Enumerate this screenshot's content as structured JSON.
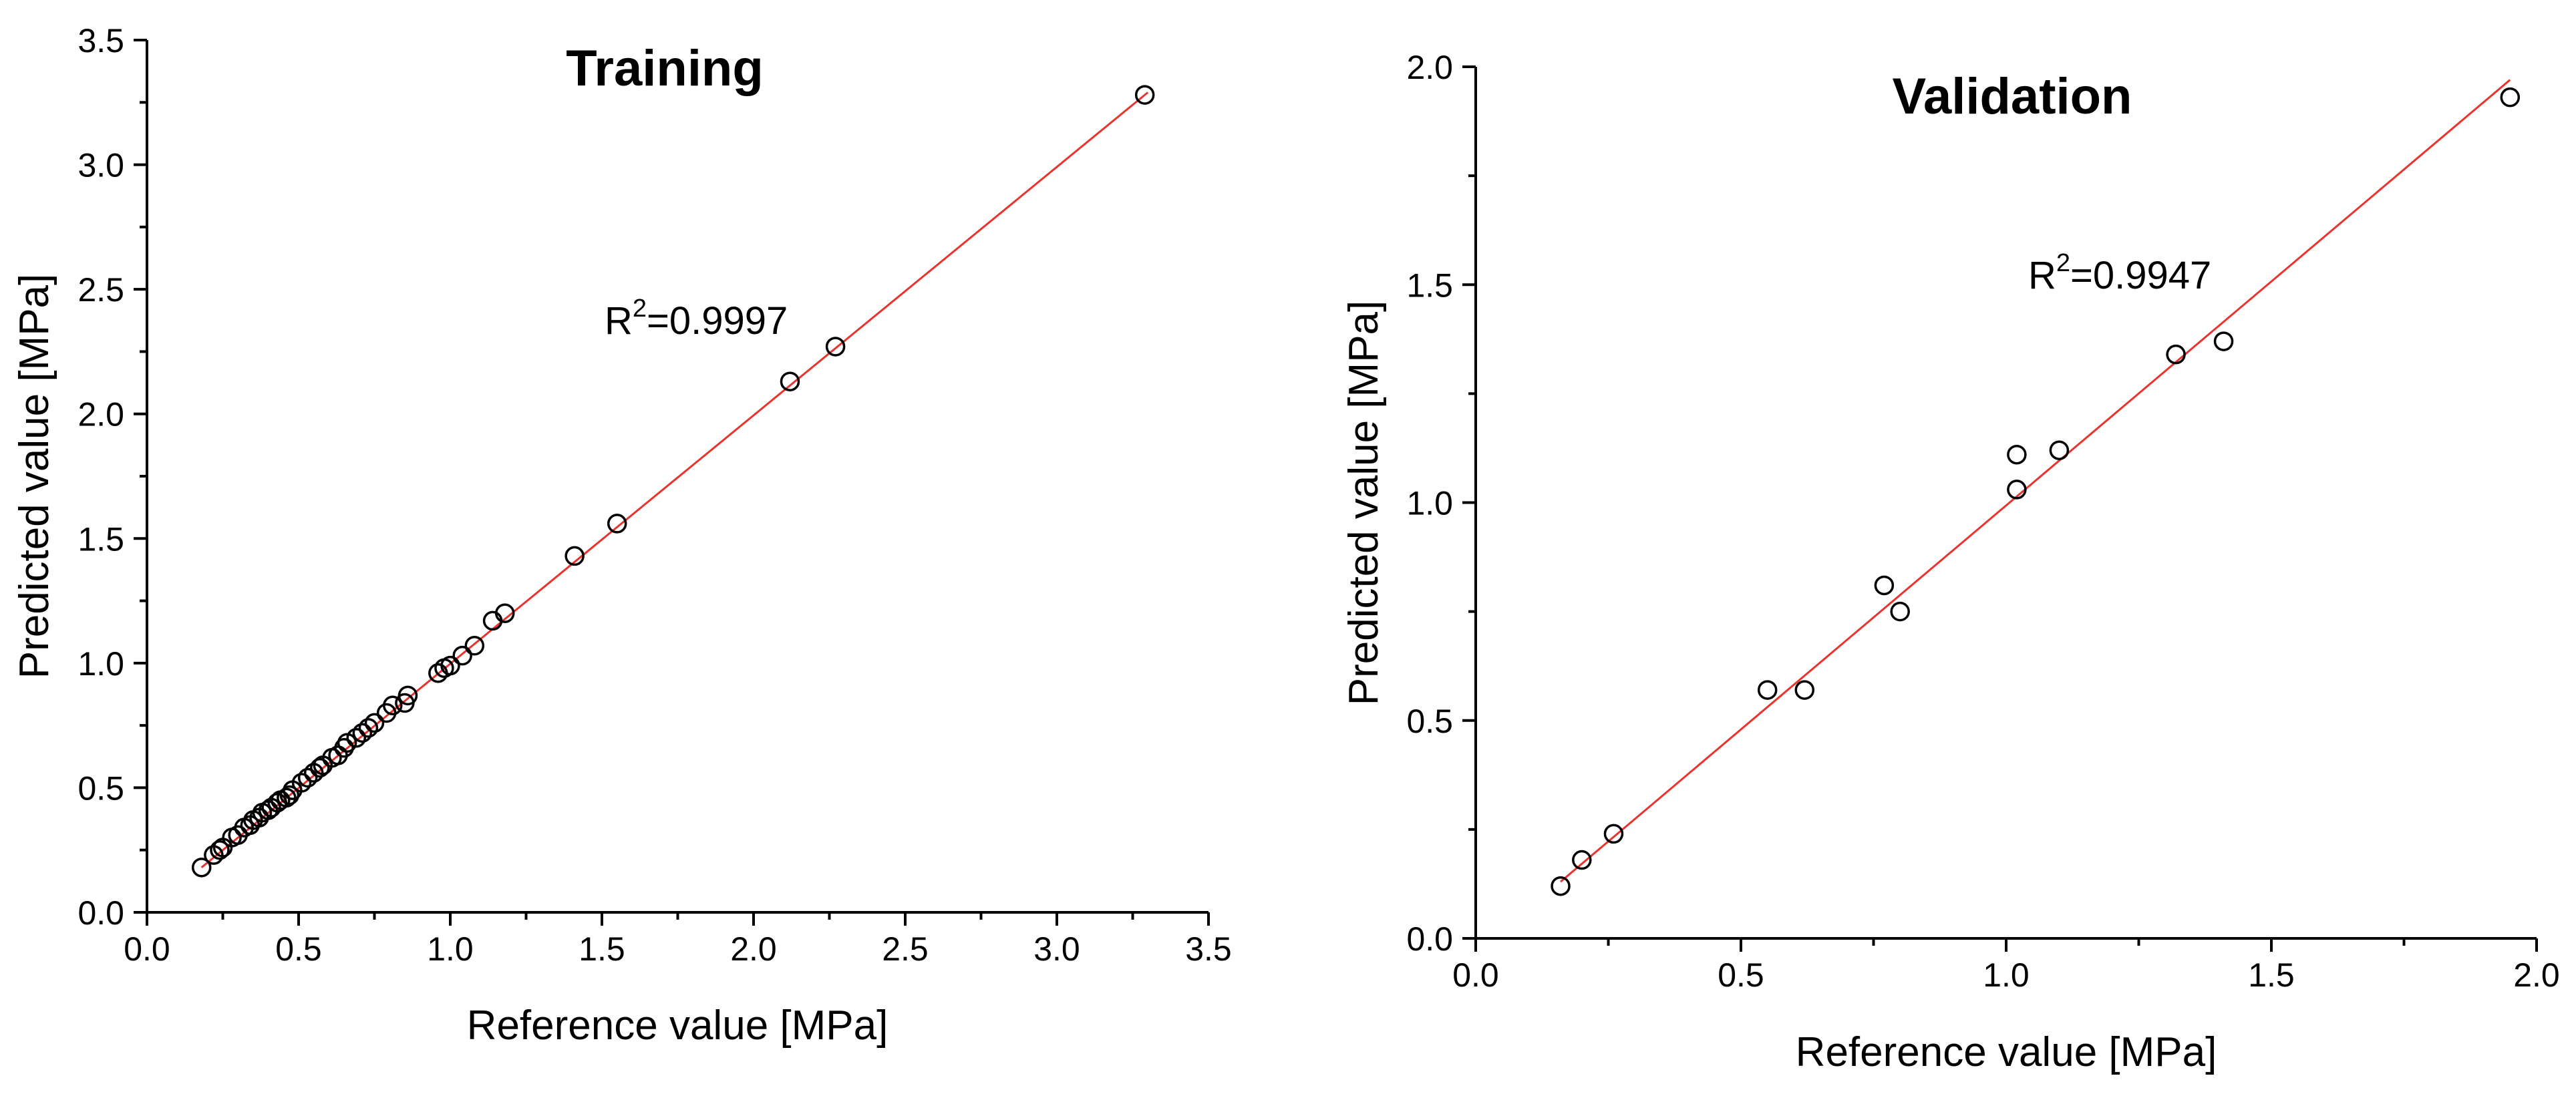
{
  "chart_data": [
    {
      "type": "scatter",
      "title": "Training",
      "xlabel": "Reference value [MPa]",
      "ylabel": "Predicted value [MPa]",
      "xlim": [
        0.0,
        3.5
      ],
      "ylim": [
        0.0,
        3.5
      ],
      "xticks": [
        "0.0",
        "0.5",
        "1.0",
        "1.5",
        "2.0",
        "2.5",
        "3.0",
        "3.5"
      ],
      "yticks": [
        "0.0",
        "0.5",
        "1.0",
        "1.5",
        "2.0",
        "2.5",
        "3.0",
        "3.5"
      ],
      "annotation": {
        "prefix": "R",
        "sup": "2",
        "suffix": "=0.9997"
      },
      "fit_line": {
        "x": [
          0.18,
          3.3
        ],
        "y": [
          0.18,
          3.29
        ],
        "color": "#e8332e"
      },
      "grid": false,
      "points": [
        [
          0.18,
          0.18
        ],
        [
          0.22,
          0.23
        ],
        [
          0.24,
          0.25
        ],
        [
          0.25,
          0.26
        ],
        [
          0.28,
          0.3
        ],
        [
          0.3,
          0.31
        ],
        [
          0.32,
          0.34
        ],
        [
          0.34,
          0.35
        ],
        [
          0.35,
          0.37
        ],
        [
          0.37,
          0.38
        ],
        [
          0.38,
          0.4
        ],
        [
          0.4,
          0.41
        ],
        [
          0.41,
          0.42
        ],
        [
          0.43,
          0.44
        ],
        [
          0.44,
          0.45
        ],
        [
          0.46,
          0.46
        ],
        [
          0.47,
          0.47
        ],
        [
          0.48,
          0.49
        ],
        [
          0.51,
          0.52
        ],
        [
          0.53,
          0.54
        ],
        [
          0.55,
          0.56
        ],
        [
          0.57,
          0.58
        ],
        [
          0.58,
          0.59
        ],
        [
          0.61,
          0.62
        ],
        [
          0.63,
          0.63
        ],
        [
          0.65,
          0.66
        ],
        [
          0.66,
          0.68
        ],
        [
          0.69,
          0.7
        ],
        [
          0.71,
          0.72
        ],
        [
          0.73,
          0.74
        ],
        [
          0.75,
          0.76
        ],
        [
          0.79,
          0.8
        ],
        [
          0.81,
          0.83
        ],
        [
          0.85,
          0.84
        ],
        [
          0.86,
          0.87
        ],
        [
          0.96,
          0.96
        ],
        [
          0.98,
          0.98
        ],
        [
          1.0,
          0.99
        ],
        [
          1.04,
          1.03
        ],
        [
          1.08,
          1.07
        ],
        [
          1.14,
          1.17
        ],
        [
          1.18,
          1.2
        ],
        [
          1.41,
          1.43
        ],
        [
          1.55,
          1.56
        ],
        [
          2.12,
          2.13
        ],
        [
          2.27,
          2.27
        ],
        [
          3.29,
          3.28
        ]
      ]
    },
    {
      "type": "scatter",
      "title": "Validation",
      "xlabel": "Reference value [MPa]",
      "ylabel": "Predicted value [MPa]",
      "xlim": [
        0.0,
        2.0
      ],
      "ylim": [
        0.0,
        2.0
      ],
      "xticks": [
        "0.0",
        "0.5",
        "1.0",
        "1.5",
        "2.0"
      ],
      "yticks": [
        "0.0",
        "0.5",
        "1.0",
        "1.5",
        "2.0"
      ],
      "annotation": {
        "prefix": "R",
        "sup": "2",
        "suffix": "=0.9947"
      },
      "fit_line": {
        "x": [
          0.16,
          1.95
        ],
        "y": [
          0.13,
          1.97
        ],
        "color": "#e8332e"
      },
      "grid": false,
      "points": [
        [
          0.16,
          0.12
        ],
        [
          0.2,
          0.18
        ],
        [
          0.26,
          0.24
        ],
        [
          0.55,
          0.57
        ],
        [
          0.62,
          0.57
        ],
        [
          0.77,
          0.81
        ],
        [
          0.8,
          0.75
        ],
        [
          1.02,
          1.11
        ],
        [
          1.02,
          1.03
        ],
        [
          1.1,
          1.12
        ],
        [
          1.32,
          1.34
        ],
        [
          1.41,
          1.37
        ],
        [
          1.95,
          1.93
        ]
      ]
    }
  ]
}
